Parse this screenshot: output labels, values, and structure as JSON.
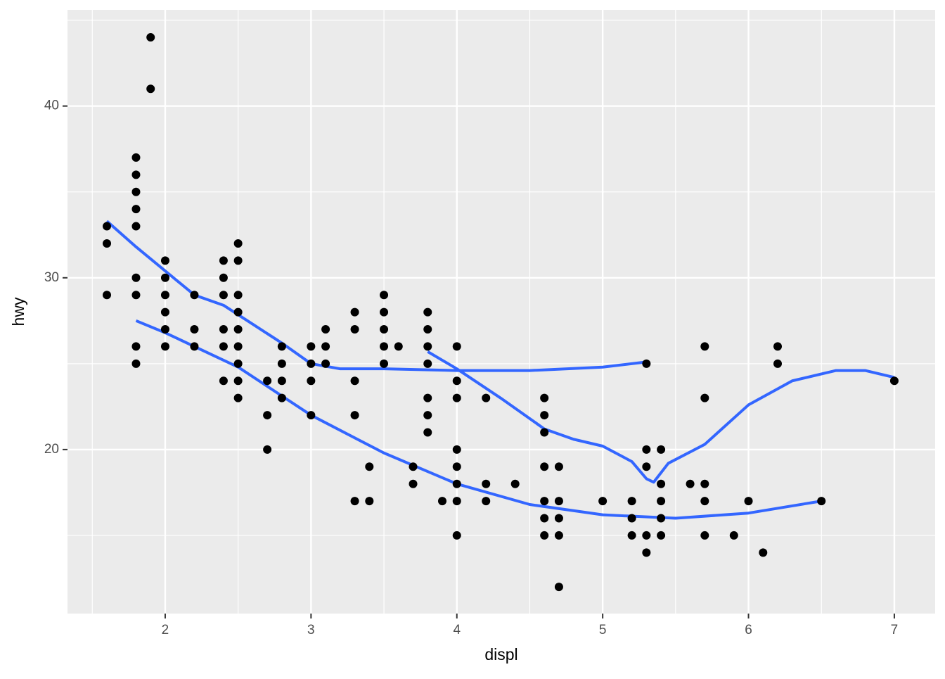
{
  "chart_data": {
    "type": "scatter",
    "x_label": "displ",
    "y_label": "hwy",
    "color": "#000000",
    "xlim": [
      1.33,
      7.28
    ],
    "ylim": [
      10.45,
      45.6
    ],
    "xticks": [
      2,
      3,
      4,
      5,
      6,
      7
    ],
    "yticks": [
      20,
      30,
      40
    ],
    "minor_xticks": [
      1.5,
      2.5,
      3.5,
      4.5,
      5.5,
      6.5
    ],
    "minor_yticks": [
      15,
      25,
      35,
      45
    ],
    "grid": true,
    "x": [
      1.6,
      1.6,
      1.6,
      1.8,
      1.8,
      1.8,
      1.8,
      1.8,
      1.8,
      1.8,
      1.8,
      1.8,
      1.9,
      1.9,
      2.0,
      2.0,
      2.0,
      2.0,
      2.0,
      2.0,
      2.2,
      2.2,
      2.2,
      2.4,
      2.4,
      2.4,
      2.4,
      2.4,
      2.4,
      2.5,
      2.5,
      2.5,
      2.5,
      2.5,
      2.5,
      2.5,
      2.5,
      2.5,
      2.7,
      2.7,
      2.7,
      2.8,
      2.8,
      2.8,
      2.8,
      3.0,
      3.0,
      3.0,
      3.0,
      3.1,
      3.1,
      3.1,
      3.3,
      3.3,
      3.3,
      3.3,
      3.3,
      3.4,
      3.4,
      3.5,
      3.5,
      3.5,
      3.5,
      3.5,
      3.6,
      3.7,
      3.7,
      3.8,
      3.8,
      3.8,
      3.8,
      3.8,
      3.8,
      3.8,
      3.9,
      4.0,
      4.0,
      4.0,
      4.0,
      4.0,
      4.0,
      4.0,
      4.0,
      4.2,
      4.2,
      4.2,
      4.4,
      4.6,
      4.6,
      4.6,
      4.6,
      4.6,
      4.6,
      4.6,
      4.7,
      4.7,
      4.7,
      4.7,
      4.7,
      5.0,
      5.2,
      5.2,
      5.2,
      5.3,
      5.3,
      5.3,
      5.3,
      5.3,
      5.4,
      5.4,
      5.4,
      5.4,
      5.4,
      5.6,
      5.7,
      5.7,
      5.7,
      5.7,
      5.7,
      5.9,
      6.0,
      6.1,
      6.2,
      6.2,
      6.5,
      7.0
    ],
    "values": [
      33,
      32,
      29,
      37,
      36,
      35,
      34,
      33,
      30,
      29,
      26,
      25,
      44,
      41,
      31,
      30,
      29,
      28,
      27,
      26,
      29,
      27,
      26,
      31,
      30,
      29,
      27,
      26,
      24,
      32,
      31,
      29,
      28,
      27,
      26,
      25,
      24,
      23,
      24,
      22,
      20,
      26,
      25,
      24,
      23,
      26,
      25,
      24,
      22,
      27,
      26,
      25,
      28,
      27,
      24,
      22,
      17,
      19,
      17,
      29,
      28,
      27,
      26,
      25,
      26,
      19,
      18,
      28,
      27,
      26,
      25,
      23,
      22,
      21,
      17,
      26,
      24,
      23,
      20,
      19,
      18,
      17,
      15,
      23,
      18,
      17,
      18,
      23,
      22,
      21,
      19,
      17,
      16,
      15,
      19,
      17,
      16,
      15,
      12,
      17,
      17,
      16,
      15,
      25,
      20,
      19,
      15,
      14,
      20,
      18,
      17,
      16,
      15,
      18,
      26,
      23,
      18,
      17,
      15,
      15,
      17,
      14,
      26,
      25,
      17,
      24
    ],
    "lines": [
      {
        "color": "#3366FF",
        "x": [
          1.6,
          1.8,
          2.0,
          2.2,
          2.4,
          2.6,
          2.8,
          3.0,
          3.2,
          3.5,
          4.0,
          4.5,
          5.0,
          5.3
        ],
        "values": [
          33.3,
          31.8,
          30.4,
          29.0,
          28.4,
          27.3,
          26.2,
          25.0,
          24.7,
          24.7,
          24.6,
          24.6,
          24.8,
          25.1
        ]
      },
      {
        "color": "#3366FF",
        "x": [
          1.8,
          2.0,
          2.5,
          3.0,
          3.5,
          4.0,
          4.5,
          5.0,
          5.5,
          6.0,
          6.5
        ],
        "values": [
          27.5,
          26.8,
          24.8,
          22.0,
          19.8,
          18.0,
          16.8,
          16.2,
          16.0,
          16.3,
          17.0
        ]
      },
      {
        "color": "#3366FF",
        "x": [
          3.8,
          4.0,
          4.3,
          4.6,
          4.8,
          5.0,
          5.2,
          5.3,
          5.35,
          5.45,
          5.7,
          6.0,
          6.3,
          6.6,
          6.8,
          7.0
        ],
        "values": [
          25.7,
          24.7,
          23.0,
          21.2,
          20.6,
          20.2,
          19.3,
          18.3,
          18.1,
          19.2,
          20.3,
          22.6,
          24.0,
          24.6,
          24.6,
          24.2
        ]
      }
    ]
  }
}
